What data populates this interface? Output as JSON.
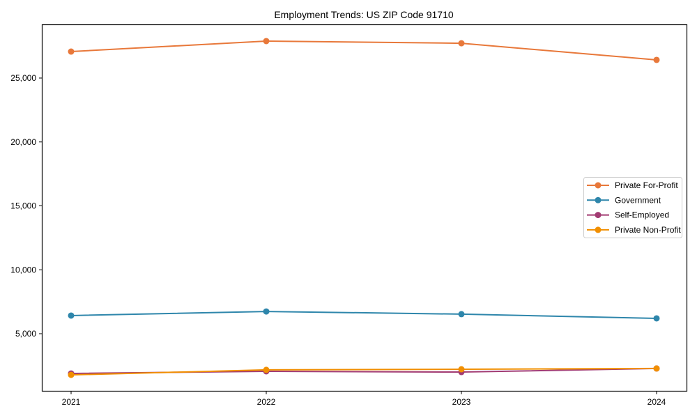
{
  "chart_data": {
    "type": "line",
    "title": "Employment Trends: US ZIP Code 91710",
    "xlabel": "",
    "ylabel": "",
    "categories": [
      "2021",
      "2022",
      "2023",
      "2024"
    ],
    "y_ticks": [
      5000,
      10000,
      15000,
      20000,
      25000
    ],
    "y_tick_labels": [
      "5,000",
      "10,000",
      "15,000",
      "20,000",
      "25,000"
    ],
    "ylim": [
      660,
      29230
    ],
    "grid": false,
    "legend_position": "center right",
    "series": [
      {
        "name": "Private For-Profit",
        "color": "#E8783A",
        "values": [
          27070,
          27890,
          27720,
          26420
        ]
      },
      {
        "name": "Government",
        "color": "#2E86AB",
        "values": [
          6420,
          6740,
          6530,
          6200
        ]
      },
      {
        "name": "Self-Employed",
        "color": "#A23B72",
        "values": [
          1890,
          2060,
          2000,
          2280
        ]
      },
      {
        "name": "Private Non-Profit",
        "color": "#F18F01",
        "values": [
          1780,
          2170,
          2220,
          2280
        ]
      }
    ]
  }
}
